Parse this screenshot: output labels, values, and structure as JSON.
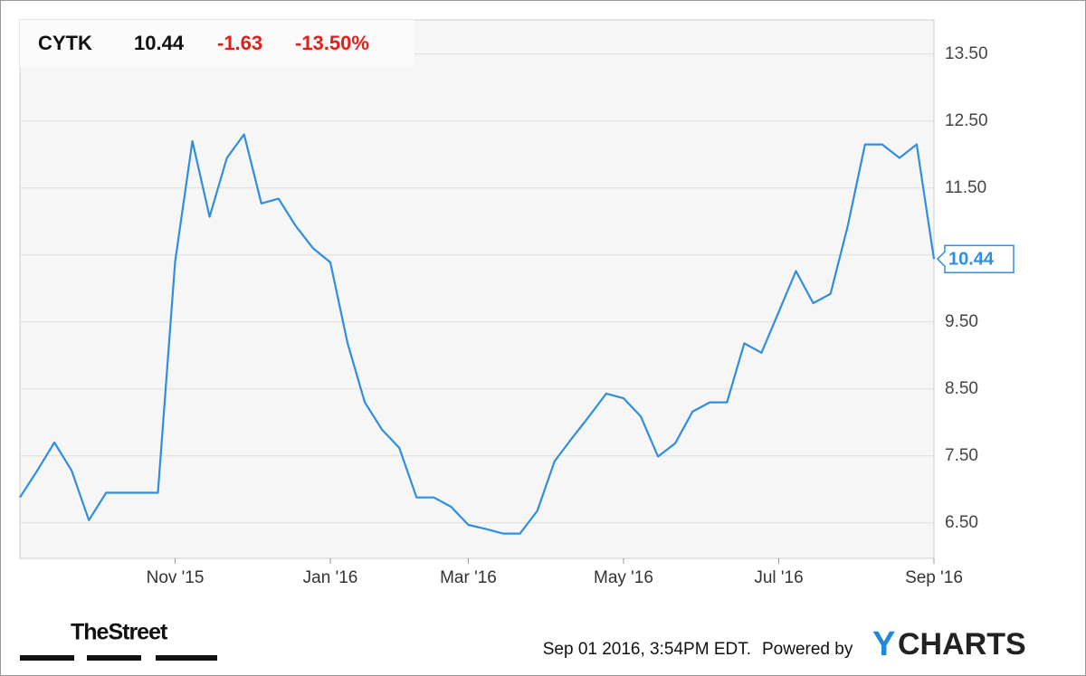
{
  "header": {
    "ticker": "CYTK",
    "price": "10.44",
    "change": "-1.63",
    "change_pct": "-13.50%"
  },
  "footer": {
    "timestamp": "Sep 01 2016, 3:54PM EDT.",
    "powered": "Powered by",
    "brand_y": "Y",
    "brand_rest": "CHARTS",
    "partner": "TheStreet"
  },
  "chart_data": {
    "type": "line",
    "categories": [
      null,
      null,
      null,
      null,
      null,
      null,
      null,
      null,
      null,
      "Nov '15",
      null,
      null,
      null,
      null,
      null,
      null,
      null,
      null,
      "Jan '16",
      null,
      null,
      null,
      null,
      null,
      null,
      null,
      "Mar '16",
      null,
      null,
      null,
      null,
      null,
      null,
      null,
      null,
      "May '16",
      null,
      null,
      null,
      null,
      null,
      null,
      null,
      null,
      "Jul '16",
      null,
      null,
      null,
      null,
      null,
      null,
      null,
      null,
      "Sep '16"
    ],
    "series": [
      {
        "name": "CYTK",
        "color": "#2f8ee0",
        "values": [
          6.88,
          7.28,
          7.7,
          7.28,
          6.54,
          6.95,
          6.95,
          6.95,
          6.95,
          10.4,
          12.2,
          11.07,
          11.95,
          12.3,
          11.27,
          11.34,
          10.93,
          10.6,
          10.39,
          9.18,
          8.3,
          7.89,
          7.62,
          6.88,
          6.88,
          6.74,
          6.47,
          6.41,
          6.34,
          6.34,
          6.68,
          7.42,
          7.76,
          8.09,
          8.43,
          8.36,
          8.09,
          7.49,
          7.69,
          8.16,
          8.3,
          8.3,
          9.18,
          9.04,
          9.65,
          10.26,
          9.78,
          9.92,
          10.93,
          12.15,
          12.15,
          11.95,
          12.15,
          10.44
        ]
      }
    ],
    "ylim": [
      5.97,
      14.01
    ],
    "yticks": [
      {
        "value": 6.5,
        "label": "6.50"
      },
      {
        "value": 7.5,
        "label": "7.50"
      },
      {
        "value": 8.5,
        "label": "8.50"
      },
      {
        "value": 9.5,
        "label": "9.50"
      },
      {
        "value": 10.5,
        "label": "10.50"
      },
      {
        "value": 11.5,
        "label": "11.50"
      },
      {
        "value": 12.5,
        "label": "12.50"
      },
      {
        "value": 13.5,
        "label": "13.50"
      }
    ],
    "grid": true
  }
}
